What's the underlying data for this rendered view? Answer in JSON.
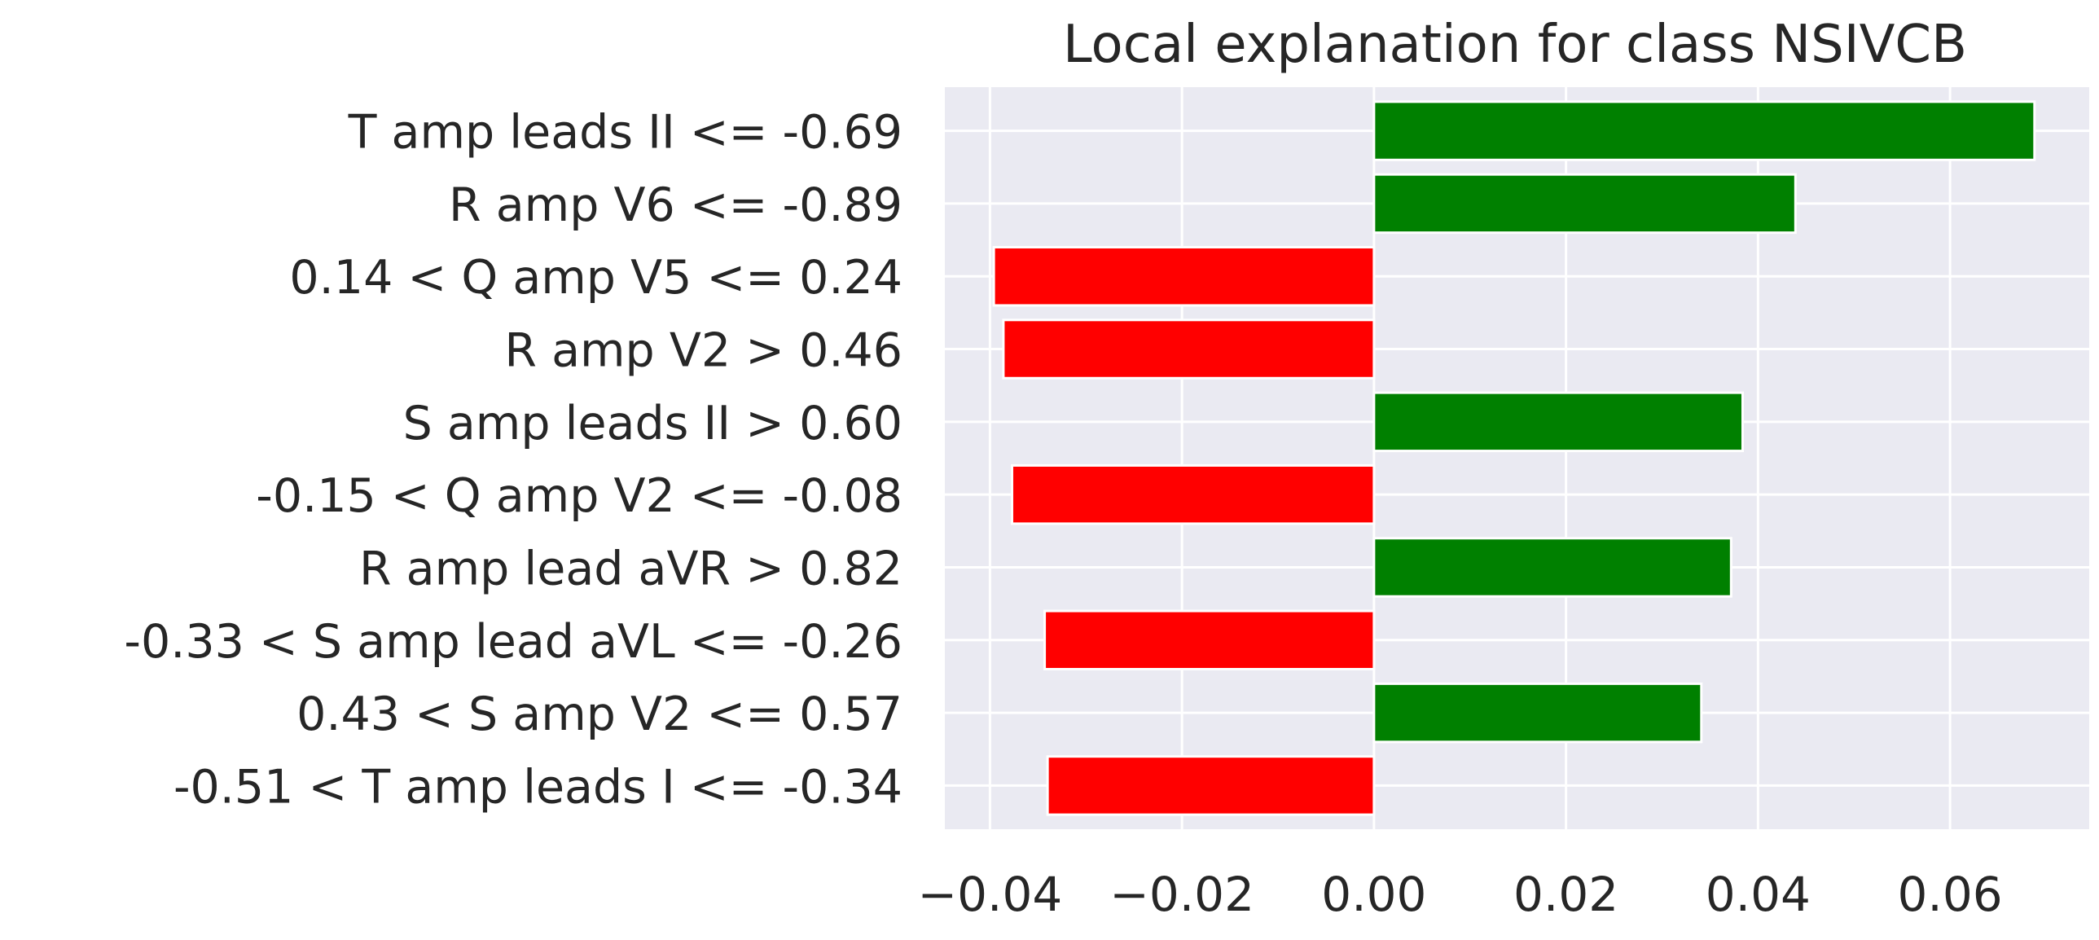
{
  "chart_data": {
    "type": "bar",
    "orientation": "horizontal",
    "title": "Local explanation for class NSIVCB",
    "xlabel": "",
    "ylabel": "",
    "categories": [
      "T amp leads II <= -0.69",
      "R amp V6 <= -0.89",
      "0.14 < Q amp V5 <= 0.24",
      "R amp V2 > 0.46",
      "S amp leads II > 0.60",
      "-0.15 < Q amp V2 <= -0.08",
      "R amp lead aVR > 0.82",
      "-0.33 < S amp lead aVL <= -0.26",
      "0.43 < S amp V2 <= 0.57",
      "-0.51 < T amp leads I <= -0.34"
    ],
    "values": [
      0.0688,
      0.0439,
      -0.0396,
      -0.0386,
      0.0384,
      -0.0377,
      0.0372,
      -0.0343,
      0.0341,
      -0.034
    ],
    "xlim": [
      -0.0447,
      0.0745
    ],
    "xticks": [
      -0.04,
      -0.02,
      0.0,
      0.02,
      0.04,
      0.06
    ],
    "xtick_labels": [
      "−0.04",
      "−0.02",
      "0.00",
      "0.02",
      "0.04",
      "0.06"
    ],
    "grid": true,
    "colors": {
      "positive": "#008000",
      "negative": "#ff0000",
      "background": "#eaeaf2",
      "grid": "#ffffff",
      "text": "#262626"
    }
  }
}
